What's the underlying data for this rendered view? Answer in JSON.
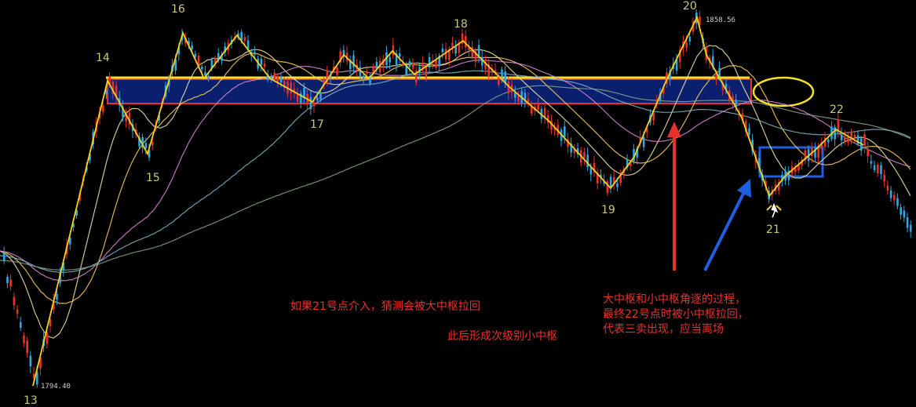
{
  "chart_data": {
    "type": "candlestick",
    "title": "",
    "price_labels": {
      "high": "1858.56",
      "low": "1794.40"
    },
    "wave_points": [
      {
        "label": "13",
        "pos": "bottom-left"
      },
      {
        "label": "14"
      },
      {
        "label": "15"
      },
      {
        "label": "16"
      },
      {
        "label": "17"
      },
      {
        "label": "18"
      },
      {
        "label": "19"
      },
      {
        "label": "20"
      },
      {
        "label": "21"
      },
      {
        "label": "22"
      }
    ],
    "zones": [
      {
        "name": "large-pivot",
        "color": "#0a1f6e",
        "border": "#e8312a"
      },
      {
        "name": "small-pivot",
        "border": "#1d5fe0"
      }
    ],
    "colors": {
      "up": "#e8312a",
      "down": "#2fa8e0",
      "wave_line": "#f2d21e",
      "zone_line": "#f5e02a"
    },
    "annotations": {
      "note_1": "如果21号点介入，猜测会被大中枢拉回",
      "note_2": "此后形成次级别小中枢",
      "note_3": [
        "大中枢和小中枢角逐的过程，",
        "最终22号点时被小中枢拉回，",
        "代表三卖出现，应当离场"
      ]
    }
  }
}
